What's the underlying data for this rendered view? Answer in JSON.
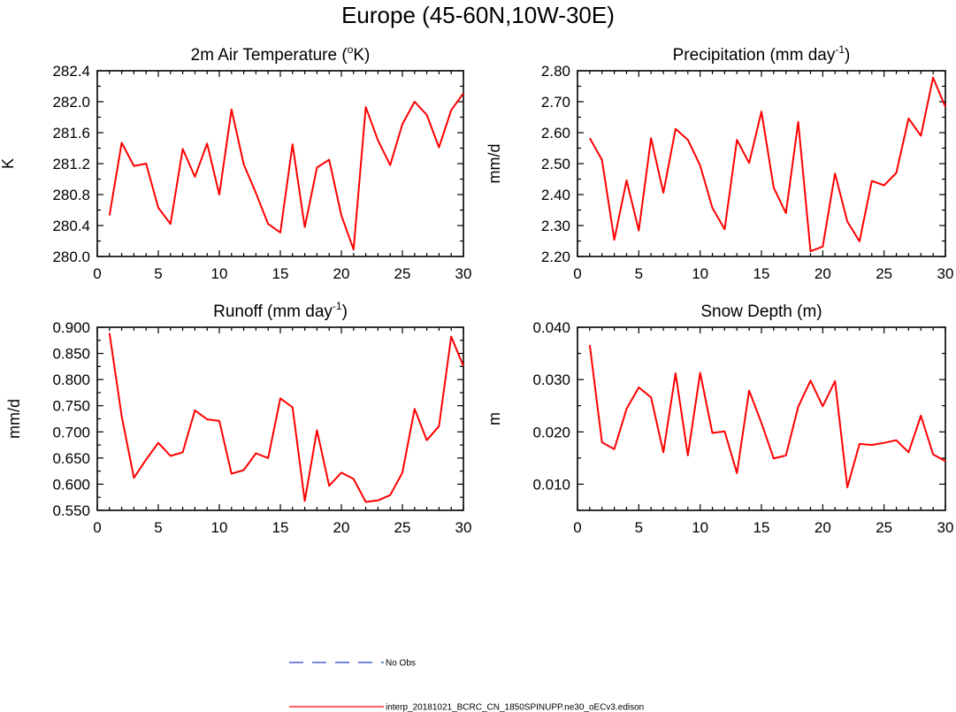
{
  "figure": {
    "title": "Europe (45-60N,10W-30E)",
    "series_color": "#ff0000",
    "obs_color": "#1f3fcf"
  },
  "legend": [
    {
      "label": "No Obs",
      "style": "dashed",
      "color": "#1f3fcf"
    },
    {
      "label": "interp_20181021_BCRC_CN_1850SPINUPP.ne30_oECv3.edison",
      "style": "solid",
      "color": "#ff0000"
    }
  ],
  "chart_data": [
    {
      "type": "line",
      "title": "2m Air Temperature (",
      "title_sup": "o",
      "title_suffix": "K)",
      "xlabel": "",
      "ylabel": "K",
      "xlim": [
        0,
        30
      ],
      "ylim": [
        280.0,
        282.4
      ],
      "xticks": [
        0,
        5,
        10,
        15,
        20,
        25,
        30
      ],
      "yticks": [
        280.0,
        280.4,
        280.8,
        281.2,
        281.6,
        282.0,
        282.4
      ],
      "ytick_labels": [
        "280.0",
        "280.4",
        "280.8",
        "281.2",
        "281.6",
        "282.0",
        "282.4"
      ],
      "x": [
        1,
        2,
        3,
        4,
        5,
        6,
        7,
        8,
        9,
        10,
        11,
        12,
        13,
        14,
        15,
        16,
        17,
        18,
        19,
        20,
        21,
        22,
        23,
        24,
        25,
        26,
        27,
        28,
        29,
        30
      ],
      "series": [
        {
          "name": "interp_20181021_BCRC_CN_1850SPINUPP.ne30_oECv3.edison",
          "values": [
            280.53,
            281.47,
            281.17,
            281.2,
            280.63,
            280.42,
            281.39,
            281.03,
            281.46,
            280.8,
            281.9,
            281.19,
            280.82,
            280.42,
            280.31,
            281.45,
            280.38,
            281.15,
            281.25,
            280.53,
            280.09,
            281.93,
            281.5,
            281.18,
            281.71,
            282.0,
            281.83,
            281.41,
            281.89,
            282.11
          ]
        }
      ]
    },
    {
      "type": "line",
      "title": "Precipitation (mm day",
      "title_sup": "-1",
      "title_suffix": ")",
      "xlabel": "",
      "ylabel": "mm/d",
      "xlim": [
        0,
        30
      ],
      "ylim": [
        2.2,
        2.8
      ],
      "xticks": [
        0,
        5,
        10,
        15,
        20,
        25,
        30
      ],
      "yticks": [
        2.2,
        2.3,
        2.4,
        2.5,
        2.6,
        2.7,
        2.8
      ],
      "ytick_labels": [
        "2.20",
        "2.30",
        "2.40",
        "2.50",
        "2.60",
        "2.70",
        "2.80"
      ],
      "x": [
        1,
        2,
        3,
        4,
        5,
        6,
        7,
        8,
        9,
        10,
        11,
        12,
        13,
        14,
        15,
        16,
        17,
        18,
        19,
        20,
        21,
        22,
        23,
        24,
        25,
        26,
        27,
        28,
        29,
        30
      ],
      "series": [
        {
          "name": "interp_20181021_BCRC_CN_1850SPINUPP.ne30_oECv3.edison",
          "values": [
            2.582,
            2.512,
            2.254,
            2.446,
            2.284,
            2.582,
            2.406,
            2.612,
            2.577,
            2.494,
            2.357,
            2.288,
            2.577,
            2.502,
            2.668,
            2.422,
            2.34,
            2.635,
            2.217,
            2.232,
            2.468,
            2.313,
            2.249,
            2.444,
            2.43,
            2.47,
            2.646,
            2.59,
            2.778,
            2.683
          ]
        }
      ]
    },
    {
      "type": "line",
      "title": "Runoff (mm day",
      "title_sup": "-1",
      "title_suffix": ")",
      "xlabel": "",
      "ylabel": "mm/d",
      "xlim": [
        0,
        30
      ],
      "ylim": [
        0.55,
        0.9
      ],
      "xticks": [
        0,
        5,
        10,
        15,
        20,
        25,
        30
      ],
      "yticks": [
        0.55,
        0.6,
        0.65,
        0.7,
        0.75,
        0.8,
        0.85,
        0.9
      ],
      "ytick_labels": [
        "0.550",
        "0.600",
        "0.650",
        "0.700",
        "0.750",
        "0.800",
        "0.850",
        "0.900"
      ],
      "x": [
        1,
        2,
        3,
        4,
        5,
        6,
        7,
        8,
        9,
        10,
        11,
        12,
        13,
        14,
        15,
        16,
        17,
        18,
        19,
        20,
        21,
        22,
        23,
        24,
        25,
        26,
        27,
        28,
        29,
        30
      ],
      "series": [
        {
          "name": "interp_20181021_BCRC_CN_1850SPINUPP.ne30_oECv3.edison",
          "values": [
            0.889,
            0.73,
            0.612,
            0.647,
            0.679,
            0.654,
            0.661,
            0.741,
            0.724,
            0.721,
            0.62,
            0.627,
            0.659,
            0.65,
            0.764,
            0.747,
            0.568,
            0.703,
            0.597,
            0.622,
            0.61,
            0.566,
            0.569,
            0.579,
            0.622,
            0.744,
            0.684,
            0.711,
            0.882,
            0.826
          ]
        }
      ]
    },
    {
      "type": "line",
      "title": "Snow Depth (m)",
      "title_sup": "",
      "title_suffix": "",
      "xlabel": "",
      "ylabel": "m",
      "xlim": [
        0,
        30
      ],
      "ylim": [
        0.005,
        0.04
      ],
      "xticks": [
        0,
        5,
        10,
        15,
        20,
        25,
        30
      ],
      "yticks": [
        0.01,
        0.02,
        0.03,
        0.04
      ],
      "ytick_labels": [
        "0.010",
        "0.020",
        "0.030",
        "0.040"
      ],
      "x": [
        1,
        2,
        3,
        4,
        5,
        6,
        7,
        8,
        9,
        10,
        11,
        12,
        13,
        14,
        15,
        16,
        17,
        18,
        19,
        20,
        21,
        22,
        23,
        24,
        25,
        26,
        27,
        28,
        29,
        30
      ],
      "series": [
        {
          "name": "interp_20181021_BCRC_CN_1850SPINUPP.ne30_oECv3.edison",
          "values": [
            0.0366,
            0.018,
            0.0167,
            0.0244,
            0.0285,
            0.0266,
            0.0161,
            0.0312,
            0.0155,
            0.0313,
            0.0198,
            0.0201,
            0.0121,
            0.0279,
            0.0217,
            0.0149,
            0.0155,
            0.0248,
            0.0298,
            0.0249,
            0.0297,
            0.0094,
            0.0177,
            0.0175,
            0.0179,
            0.0184,
            0.0161,
            0.0231,
            0.0157,
            0.0144
          ]
        }
      ]
    }
  ]
}
